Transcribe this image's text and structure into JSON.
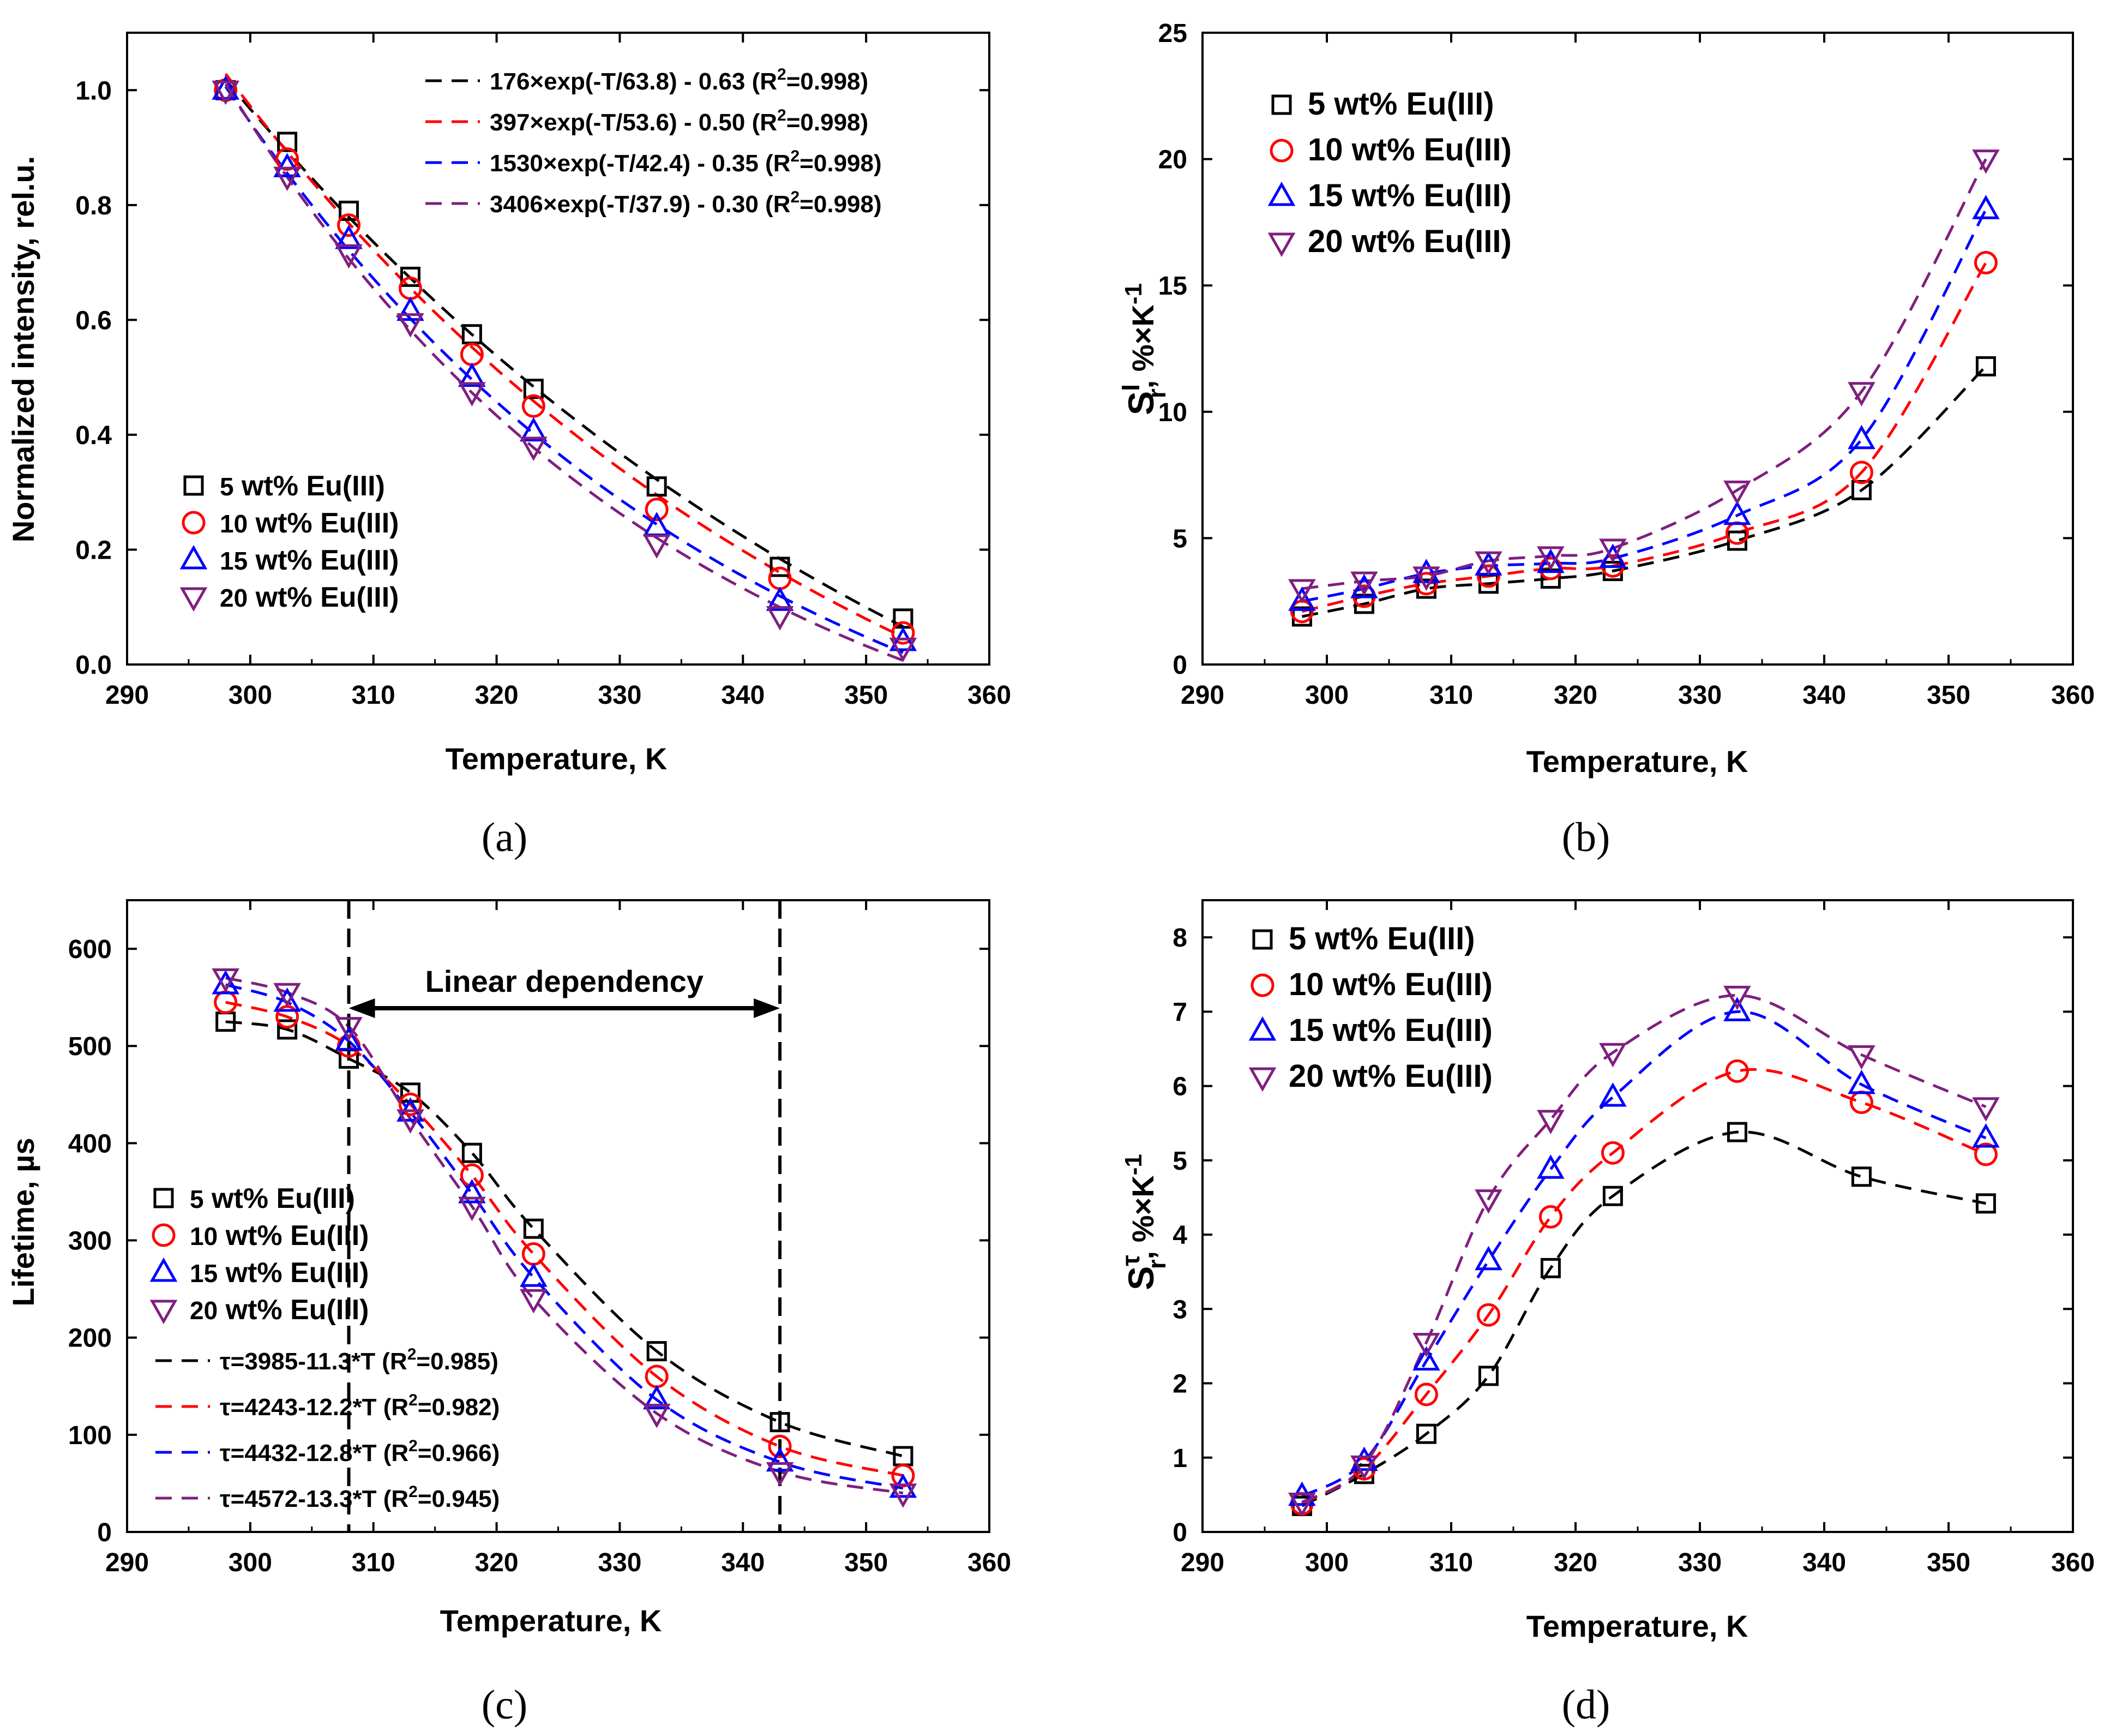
{
  "chart_data": [
    {
      "id": "a",
      "type": "scatter",
      "caption": "a",
      "xlabel": "Temperature, K",
      "ylabel": "Normalized intensity, rel.u.",
      "xlim": [
        290,
        360
      ],
      "ylim": [
        0,
        1.1
      ],
      "xticks": [
        "290",
        "300",
        "310",
        "320",
        "330",
        "340",
        "350",
        "360"
      ],
      "yticks": [
        "0.0",
        "0.2",
        "0.4",
        "0.6",
        "0.8",
        "1.0"
      ],
      "x": [
        298,
        303,
        308,
        313,
        318,
        323,
        333,
        343,
        353
      ],
      "series": [
        {
          "name": "5 wt% Eu(III)",
          "label_num": "5",
          "label_rest": " wt% Eu(III)",
          "marker": "square",
          "color": "#000000",
          "values": [
            1.0,
            0.91,
            0.79,
            0.675,
            0.575,
            0.48,
            0.31,
            0.17,
            0.08
          ]
        },
        {
          "name": "10 wt% Eu(III)",
          "label_num": "10",
          "label_rest": " wt% Eu(III)",
          "marker": "circle",
          "color": "#ff0000",
          "values": [
            1.0,
            0.88,
            0.765,
            0.655,
            0.54,
            0.45,
            0.27,
            0.15,
            0.055
          ]
        },
        {
          "name": "15 wt% Eu(III)",
          "label_num": "15",
          "label_rest": " wt% Eu(III)",
          "marker": "triangle-up",
          "color": "#0000ff",
          "values": [
            1.0,
            0.865,
            0.74,
            0.615,
            0.5,
            0.405,
            0.24,
            0.11,
            0.04
          ]
        },
        {
          "name": "20 wt% Eu(III)",
          "label_num": "20",
          "label_rest": " wt% Eu(III)",
          "marker": "triangle-down",
          "color": "#7f1f7f",
          "values": [
            1.0,
            0.85,
            0.715,
            0.595,
            0.475,
            0.38,
            0.21,
            0.085,
            0.03
          ]
        }
      ],
      "fits": [
        {
          "color": "#000000",
          "type": "exp",
          "A": 176,
          "t": 63.8,
          "c": -0.63,
          "label": "176×exp(-T/63.8) - 0.63 (R",
          "sup": "2",
          "label_end": "=0.998)"
        },
        {
          "color": "#ff0000",
          "type": "exp",
          "A": 397,
          "t": 53.6,
          "c": -0.5,
          "label": "397×exp(-T/53.6) - 0.50 (R",
          "sup": "2",
          "label_end": "=0.998)"
        },
        {
          "color": "#0000ff",
          "type": "exp",
          "A": 1530,
          "t": 42.4,
          "c": -0.35,
          "label": "1530×exp(-T/42.4) - 0.35 (R",
          "sup": "2",
          "label_end": "=0.998)"
        },
        {
          "color": "#7f1f7f",
          "type": "exp",
          "A": 3406,
          "t": 37.9,
          "c": -0.3,
          "label": "3406×exp(-T/37.9) - 0.30 (R",
          "sup": "2",
          "label_end": "=0.998)"
        }
      ]
    },
    {
      "id": "b",
      "type": "scatter",
      "caption": "b",
      "xlabel": "Temperature, K",
      "ylabel_main": "S",
      "ylabel_sub": "r",
      "ylabel_sup": "I",
      "ylabel_rest": ", %×K",
      "ylabel_exp": "-1",
      "xlim": [
        290,
        360
      ],
      "ylim": [
        0,
        25
      ],
      "xticks": [
        "290",
        "300",
        "310",
        "320",
        "330",
        "340",
        "350",
        "360"
      ],
      "yticks": [
        "0",
        "5",
        "10",
        "15",
        "20",
        "25"
      ],
      "x": [
        298,
        303,
        308,
        313,
        318,
        323,
        333,
        343,
        353
      ],
      "series": [
        {
          "name": "5 wt% Eu(III)",
          "label_num": "5",
          "label_rest": " wt% Eu(III)",
          "marker": "square",
          "color": "#000000",
          "values": [
            1.9,
            2.4,
            3.0,
            3.2,
            3.4,
            3.7,
            4.9,
            6.9,
            11.8
          ]
        },
        {
          "name": "10 wt% Eu(III)",
          "label_num": "10",
          "label_rest": " wt% Eu(III)",
          "marker": "circle",
          "color": "#ff0000",
          "values": [
            2.1,
            2.7,
            3.2,
            3.5,
            3.8,
            3.9,
            5.2,
            7.6,
            15.9
          ]
        },
        {
          "name": "15 wt% Eu(III)",
          "label_num": "15",
          "label_rest": " wt% Eu(III)",
          "marker": "triangle-up",
          "color": "#0000ff",
          "values": [
            2.5,
            3.0,
            3.6,
            3.9,
            4.0,
            4.2,
            5.9,
            8.9,
            18.0
          ]
        },
        {
          "name": "20 wt% Eu(III)",
          "label_num": "20",
          "label_rest": " wt% Eu(III)",
          "marker": "triangle-down",
          "color": "#7f1f7f",
          "values": [
            3.0,
            3.3,
            3.5,
            4.1,
            4.3,
            4.6,
            6.9,
            10.8,
            20.0
          ]
        }
      ]
    },
    {
      "id": "c",
      "type": "scatter",
      "caption": "c",
      "xlabel": "Temperature, K",
      "ylabel": "Lifetime, µs",
      "xlim": [
        290,
        360
      ],
      "ylim": [
        0,
        650
      ],
      "xticks": [
        "290",
        "300",
        "310",
        "320",
        "330",
        "340",
        "350",
        "360"
      ],
      "yticks": [
        "0",
        "100",
        "200",
        "300",
        "400",
        "500",
        "600"
      ],
      "x": [
        298,
        303,
        308,
        313,
        318,
        323,
        333,
        343,
        353
      ],
      "series": [
        {
          "name": "5 wt% Eu(III)",
          "label_num": "5",
          "label_rest": " wt% Eu(III)",
          "marker": "square",
          "color": "#000000",
          "values": [
            525,
            517,
            487,
            452,
            390,
            312,
            186,
            113,
            78
          ]
        },
        {
          "name": "10 wt% Eu(III)",
          "label_num": "10",
          "label_rest": " wt% Eu(III)",
          "marker": "circle",
          "color": "#ff0000",
          "values": [
            545,
            530,
            500,
            440,
            367,
            286,
            160,
            88,
            58
          ]
        },
        {
          "name": "15 wt% Eu(III)",
          "label_num": "15",
          "label_rest": " wt% Eu(III)",
          "marker": "triangle-up",
          "color": "#0000ff",
          "values": [
            563,
            545,
            505,
            432,
            348,
            262,
            136,
            72,
            45
          ]
        },
        {
          "name": "20 wt% Eu(III)",
          "label_num": "20",
          "label_rest": " wt% Eu(III)",
          "marker": "triangle-down",
          "color": "#7f1f7f",
          "values": [
            570,
            555,
            520,
            425,
            335,
            240,
            122,
            62,
            40
          ]
        }
      ],
      "fits": [
        {
          "color": "#000000",
          "label": "τ=3985-11.3*T (R",
          "sup": "2",
          "label_end": "=0.985)"
        },
        {
          "color": "#ff0000",
          "label": "τ=4243-12.2*T (R",
          "sup": "2",
          "label_end": "=0.982)"
        },
        {
          "color": "#0000ff",
          "label": "τ=4432-12.8*T (R",
          "sup": "2",
          "label_end": "=0.966)"
        },
        {
          "color": "#7f1f7f",
          "label": "τ=4572-13.3*T (R",
          "sup": "2",
          "label_end": "=0.945)"
        }
      ],
      "vlines": [
        308,
        343
      ],
      "annotation": {
        "text": "Linear dependency",
        "from": 308,
        "to": 343,
        "y": 500
      }
    },
    {
      "id": "d",
      "type": "scatter",
      "caption": "d",
      "xlabel": "Temperature, K",
      "ylabel_main": "S",
      "ylabel_sub": "r",
      "ylabel_sup": "τ",
      "ylabel_rest": ", %×K",
      "ylabel_exp": "-1",
      "xlim": [
        290,
        360
      ],
      "ylim": [
        0,
        8.5
      ],
      "xticks": [
        "290",
        "300",
        "310",
        "320",
        "330",
        "340",
        "350",
        "360"
      ],
      "yticks": [
        "0",
        "1",
        "2",
        "3",
        "4",
        "5",
        "6",
        "7",
        "8"
      ],
      "x": [
        298,
        303,
        308,
        313,
        318,
        323,
        333,
        343,
        353
      ],
      "series": [
        {
          "name": "5 wt% Eu(III)",
          "label_num": "5",
          "label_rest": " wt% Eu(III)",
          "marker": "square",
          "color": "#000000",
          "values": [
            0.35,
            0.78,
            1.32,
            2.1,
            3.55,
            4.52,
            5.38,
            4.78,
            4.42
          ]
        },
        {
          "name": "10 wt% Eu(III)",
          "label_num": "10",
          "label_rest": " wt% Eu(III)",
          "marker": "circle",
          "color": "#ff0000",
          "values": [
            0.38,
            0.85,
            1.85,
            2.92,
            4.24,
            5.1,
            6.2,
            5.78,
            5.08
          ]
        },
        {
          "name": "15 wt% Eu(III)",
          "label_num": "15",
          "label_rest": " wt% Eu(III)",
          "marker": "triangle-up",
          "color": "#0000ff",
          "values": [
            0.48,
            0.95,
            2.3,
            3.65,
            4.88,
            5.85,
            7.0,
            6.02,
            5.3
          ]
        },
        {
          "name": "20 wt% Eu(III)",
          "label_num": "20",
          "label_rest": " wt% Eu(III)",
          "marker": "triangle-down",
          "color": "#7f1f7f",
          "values": [
            0.4,
            0.9,
            2.55,
            4.48,
            5.55,
            6.45,
            7.22,
            6.42,
            5.72
          ]
        }
      ]
    }
  ]
}
